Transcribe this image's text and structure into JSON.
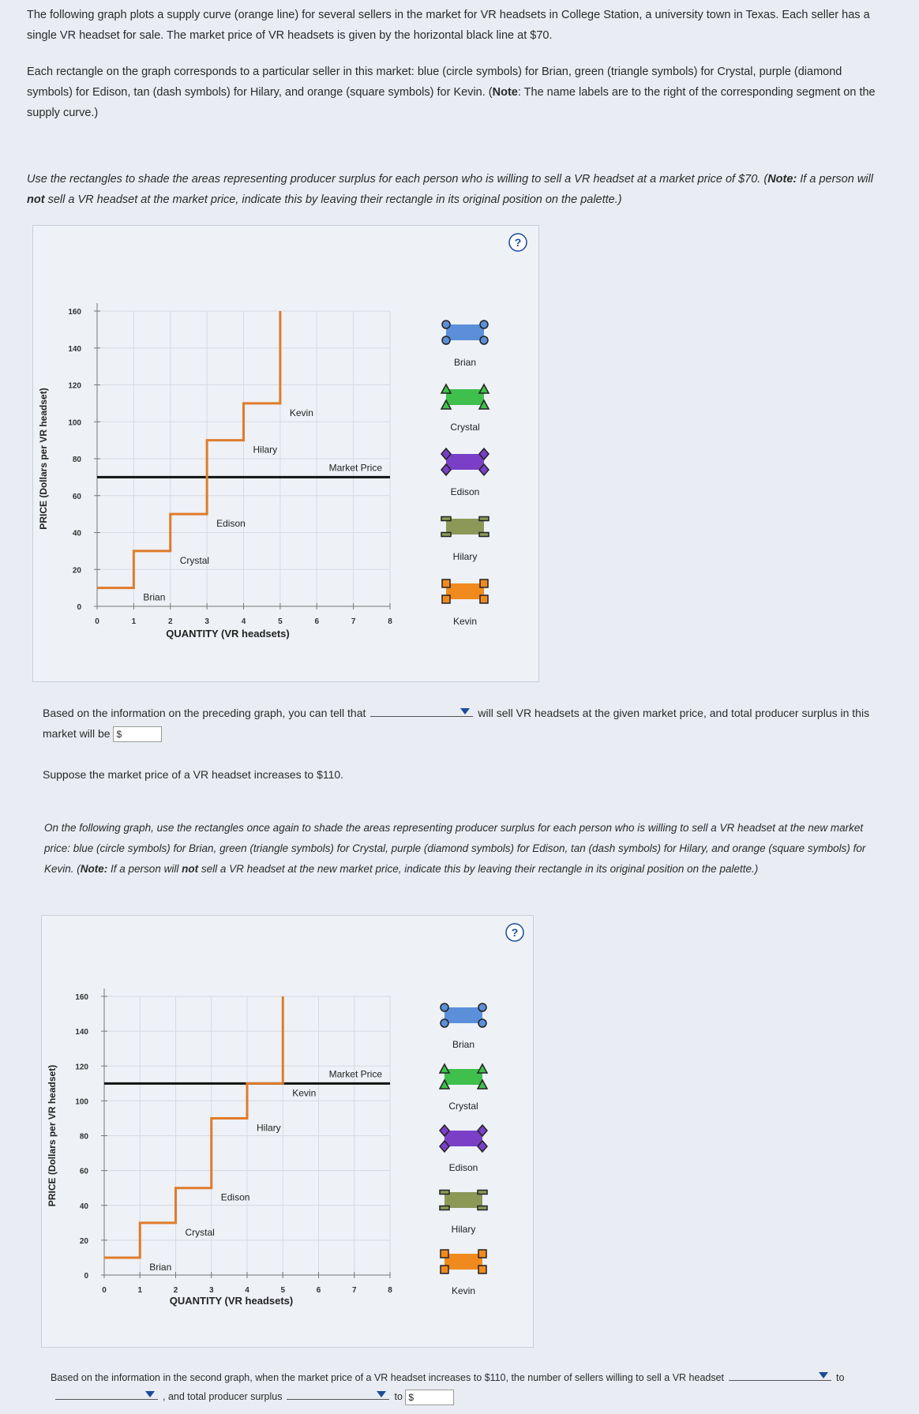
{
  "paragraphs": [
    [
      "The following graph plots a supply curve (orange line) for several sellers in the market for VR headsets in College Station, a university town in Texas. Each seller has a single VR headset for sale. The market price of VR headsets is given by the horizontal black line at $70."
    ],
    [
      "Each rectangle on the graph corresponds to a particular seller in this market: blue (circle symbols) for Brian, green (triangle symbols) for Crystal, purple (diamond symbols) for Edison, tan (dash symbols) for Hilary, and orange (square symbols) for Kevin. (",
      "Note",
      ": The name labels are to the right of the corresponding segment on the supply curve.)"
    ],
    [
      "Use the rectangles to shade the areas representing producer surplus for each person who is willing to sell a VR headset at a market price of $70. (",
      "Note:",
      " If a person will ",
      "not",
      " sell a VR headset at the market price, indicate this by leaving their rectangle in its original position on the palette.)"
    ],
    [
      "Suppose the market price of a VR headset increases to $110."
    ],
    [
      "On the following graph, use the rectangles once again to shade the areas representing producer surplus for each person who is willing to sell a VR headset at the new market price: blue (circle symbols) for Brian, green (triangle symbols) for Crystal, purple (diamond symbols) for Edison, tan (dash symbols) for Hilary, and orange (square symbols) for Kevin. (",
      "Note:",
      " If a person will ",
      "not",
      " sell a VR headset at the new market price, indicate this by leaving their rectangle in its original position on the palette.)"
    ]
  ],
  "question_1": {
    "before": "Based on the information on the preceding graph, you can tell that",
    "after": "will sell VR headsets at the given market price, and total producer surplus in this market will be",
    "currency": "$"
  },
  "question_2": {
    "parts": [
      "Based on the information in the second graph, when the market price of a VR headset increases to $110, the number of sellers willing to sell a VR headset",
      "to",
      ", and total producer surplus",
      "to"
    ],
    "currency": "$"
  },
  "help_icon": "?",
  "sellers": [
    {
      "name": "Brian",
      "color": "#5b8fd9",
      "symbol": "circle"
    },
    {
      "name": "Crystal",
      "color": "#3fbf4c",
      "symbol": "triangle"
    },
    {
      "name": "Edison",
      "color": "#7a3fc6",
      "symbol": "diamond"
    },
    {
      "name": "Hilary",
      "color": "#8c9858",
      "symbol": "dash"
    },
    {
      "name": "Kevin",
      "color": "#f08a1e",
      "symbol": "square"
    }
  ],
  "chart_data": [
    {
      "type": "line",
      "x": [
        0,
        1,
        1,
        2,
        2,
        3,
        3,
        4,
        4,
        5,
        5
      ],
      "series": [
        {
          "color": "#e07b2a",
          "values": [
            10,
            10,
            30,
            30,
            50,
            50,
            90,
            90,
            110,
            110,
            160
          ]
        }
      ],
      "xlim": [
        0,
        8
      ],
      "xticks": [
        0,
        1,
        2,
        3,
        4,
        5,
        6,
        7,
        8
      ],
      "ylim": [
        0,
        160
      ],
      "yticks": [
        0,
        20,
        40,
        60,
        80,
        100,
        120,
        140,
        160
      ],
      "xlabel": "QUANTITY (VR headsets)",
      "ylabel": "PRICE (Dollars per VR headset)",
      "market_price": {
        "label": "Market Price",
        "value": 70
      },
      "grid": true
    },
    {
      "type": "line",
      "x": [
        0,
        1,
        1,
        2,
        2,
        3,
        3,
        4,
        4,
        5,
        5
      ],
      "series": [
        {
          "color": "#e07b2a",
          "values": [
            10,
            10,
            30,
            30,
            50,
            50,
            90,
            90,
            110,
            110,
            160
          ]
        }
      ],
      "xlim": [
        0,
        8
      ],
      "xticks": [
        0,
        1,
        2,
        3,
        4,
        5,
        6,
        7,
        8
      ],
      "ylim": [
        0,
        160
      ],
      "yticks": [
        0,
        20,
        40,
        60,
        80,
        100,
        120,
        140,
        160
      ],
      "xlabel": "QUANTITY (VR headsets)",
      "ylabel": "PRICE (Dollars per VR headset)",
      "market_price": {
        "label": "Market Price",
        "value": 110
      },
      "grid": true
    }
  ]
}
